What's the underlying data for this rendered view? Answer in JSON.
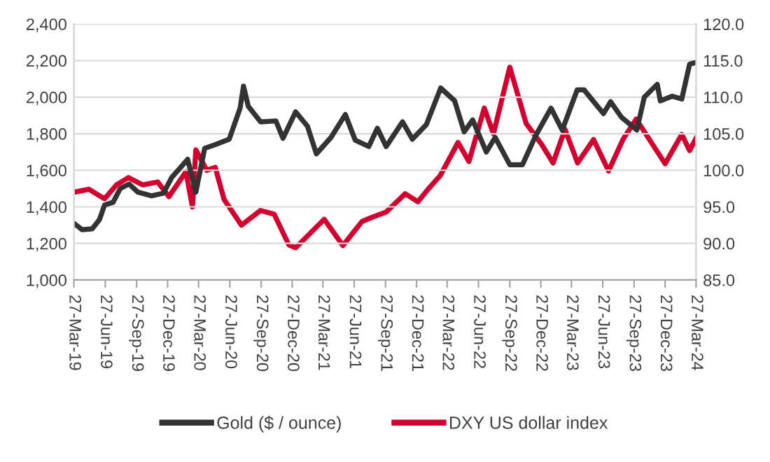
{
  "chart_data": {
    "type": "line",
    "xlim": [
      "2019-03-27",
      "2024-03-27"
    ],
    "xticks": [
      {
        "value": "2019-03-27",
        "label": "27-Mar-19"
      },
      {
        "value": "2019-06-27",
        "label": "27-Jun-19"
      },
      {
        "value": "2019-09-27",
        "label": "27-Sep-19"
      },
      {
        "value": "2019-12-27",
        "label": "27-Dec-19"
      },
      {
        "value": "2020-03-27",
        "label": "27-Mar-20"
      },
      {
        "value": "2020-06-27",
        "label": "27-Jun-20"
      },
      {
        "value": "2020-09-27",
        "label": "27-Sep-20"
      },
      {
        "value": "2020-12-27",
        "label": "27-Dec-20"
      },
      {
        "value": "2021-03-27",
        "label": "27-Mar-21"
      },
      {
        "value": "2021-06-27",
        "label": "27-Jun-21"
      },
      {
        "value": "2021-09-27",
        "label": "27-Sep-21"
      },
      {
        "value": "2021-12-27",
        "label": "27-Dec-21"
      },
      {
        "value": "2022-03-27",
        "label": "27-Mar-22"
      },
      {
        "value": "2022-06-27",
        "label": "27-Jun-22"
      },
      {
        "value": "2022-09-27",
        "label": "27-Sep-22"
      },
      {
        "value": "2022-12-27",
        "label": "27-Dec-22"
      },
      {
        "value": "2023-03-27",
        "label": "27-Mar-23"
      },
      {
        "value": "2023-06-27",
        "label": "27-Jun-23"
      },
      {
        "value": "2023-09-27",
        "label": "27-Sep-23"
      },
      {
        "value": "2023-12-27",
        "label": "27-Dec-23"
      },
      {
        "value": "2024-03-27",
        "label": "27-Mar-24"
      }
    ],
    "ylim": [
      1000,
      2400
    ],
    "yticks": [
      {
        "value": 1000,
        "label": "1,000"
      },
      {
        "value": 1200,
        "label": "1,200"
      },
      {
        "value": 1400,
        "label": "1,400"
      },
      {
        "value": 1600,
        "label": "1,600"
      },
      {
        "value": 1800,
        "label": "1,800"
      },
      {
        "value": 2000,
        "label": "2,000"
      },
      {
        "value": 2200,
        "label": "2,200"
      },
      {
        "value": 2400,
        "label": "2,400"
      }
    ],
    "y2lim": [
      85,
      120
    ],
    "y2ticks": [
      {
        "value": 85,
        "label": "85.0"
      },
      {
        "value": 90,
        "label": "90.0"
      },
      {
        "value": 95,
        "label": "95.0"
      },
      {
        "value": 100,
        "label": "100.0"
      },
      {
        "value": 105,
        "label": "105.0"
      },
      {
        "value": 110,
        "label": "110.0"
      },
      {
        "value": 115,
        "label": "115.0"
      },
      {
        "value": 120,
        "label": "120.0"
      }
    ],
    "grid": "y",
    "legend": "bottom",
    "marker": "none",
    "line_style": "solid",
    "series": [
      {
        "name": "Gold ($ / ounce)",
        "color": "#333333",
        "x": [
          "2019-03-27",
          "2019-04-20",
          "2019-05-20",
          "2019-06-10",
          "2019-06-25",
          "2019-07-20",
          "2019-08-10",
          "2019-09-05",
          "2019-10-01",
          "2019-11-10",
          "2019-12-15",
          "2020-01-08",
          "2020-02-24",
          "2020-03-19",
          "2020-04-14",
          "2020-05-15",
          "2020-06-25",
          "2020-07-27",
          "2020-08-06",
          "2020-08-20",
          "2020-09-25",
          "2020-11-09",
          "2020-11-30",
          "2021-01-06",
          "2021-02-10",
          "2021-03-08",
          "2021-04-20",
          "2021-06-01",
          "2021-06-30",
          "2021-08-09",
          "2021-09-03",
          "2021-09-29",
          "2021-11-16",
          "2021-12-15",
          "2022-01-25",
          "2022-03-08",
          "2022-04-18",
          "2022-05-16",
          "2022-06-10",
          "2022-07-20",
          "2022-08-15",
          "2022-09-27",
          "2022-11-03",
          "2022-12-12",
          "2023-01-26",
          "2023-02-28",
          "2023-04-13",
          "2023-05-03",
          "2023-06-29",
          "2023-07-20",
          "2023-08-21",
          "2023-10-05",
          "2023-10-27",
          "2023-12-04",
          "2023-12-13",
          "2024-01-17",
          "2024-02-14",
          "2024-03-08",
          "2024-03-27"
        ],
        "values": [
          1310,
          1275,
          1280,
          1330,
          1410,
          1425,
          1500,
          1525,
          1480,
          1460,
          1475,
          1560,
          1660,
          1480,
          1720,
          1740,
          1770,
          1940,
          2060,
          1950,
          1865,
          1870,
          1775,
          1920,
          1840,
          1690,
          1780,
          1905,
          1765,
          1730,
          1830,
          1730,
          1865,
          1770,
          1850,
          2050,
          1980,
          1810,
          1875,
          1700,
          1780,
          1630,
          1630,
          1790,
          1940,
          1820,
          2040,
          2040,
          1910,
          1975,
          1890,
          1820,
          2000,
          2070,
          1980,
          2005,
          1990,
          2180,
          2190
        ]
      },
      {
        "name": "DXY US dollar index",
        "color": "#d4002e",
        "axis": "y2",
        "x": [
          "2019-03-27",
          "2019-05-10",
          "2019-06-25",
          "2019-07-30",
          "2019-09-03",
          "2019-10-15",
          "2019-11-28",
          "2019-12-31",
          "2020-02-19",
          "2020-03-09",
          "2020-03-19",
          "2020-04-20",
          "2020-05-15",
          "2020-06-10",
          "2020-07-31",
          "2020-09-25",
          "2020-11-04",
          "2020-12-17",
          "2021-01-06",
          "2021-03-31",
          "2021-05-25",
          "2021-07-20",
          "2021-08-20",
          "2021-09-29",
          "2021-11-24",
          "2021-12-31",
          "2022-01-28",
          "2022-03-07",
          "2022-04-28",
          "2022-05-30",
          "2022-07-14",
          "2022-08-10",
          "2022-09-27",
          "2022-11-14",
          "2022-12-30",
          "2023-02-01",
          "2023-03-08",
          "2023-04-14",
          "2023-05-31",
          "2023-07-14",
          "2023-08-25",
          "2023-10-03",
          "2023-12-27",
          "2024-02-14",
          "2024-03-08",
          "2024-03-27"
        ],
        "values": [
          97.0,
          97.4,
          96.1,
          98.0,
          99.0,
          98.0,
          98.4,
          96.4,
          99.8,
          95.0,
          102.8,
          100.0,
          100.4,
          96.0,
          92.5,
          94.5,
          94.0,
          89.8,
          89.4,
          93.3,
          89.7,
          93.0,
          93.6,
          94.3,
          96.8,
          95.7,
          97.3,
          99.3,
          103.8,
          101.2,
          108.5,
          105.0,
          114.1,
          106.4,
          103.5,
          101.0,
          105.6,
          101.0,
          104.2,
          99.9,
          104.2,
          107.0,
          100.9,
          104.9,
          102.7,
          104.4
        ]
      }
    ]
  }
}
